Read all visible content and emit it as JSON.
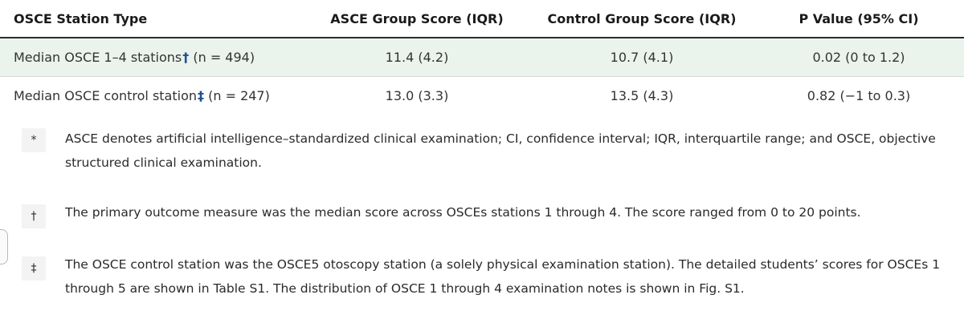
{
  "table": {
    "headers": [
      "OSCE Station Type",
      "ASCE Group Score (IQR)",
      "Control Group Score (IQR)",
      "P Value (95% CI)"
    ],
    "rows": [
      {
        "label": "Median OSCE 1–4 stations",
        "mark": "†",
        "n": "(n = 494)",
        "asce": "11.4 (4.2)",
        "control": "10.7 (4.1)",
        "p": "0.02 (0 to 1.2)"
      },
      {
        "label": "Median OSCE control station",
        "mark": "‡",
        "n": "(n = 247)",
        "asce": "13.0 (3.3)",
        "control": "13.5 (4.3)",
        "p": "0.82 (−1 to 0.3)"
      }
    ]
  },
  "footnotes": [
    {
      "mark": "*",
      "text": "ASCE denotes artificial intelligence–standardized clinical examination; CI, confidence interval; IQR, interquartile range; and OSCE, objective structured clinical examination."
    },
    {
      "mark": "†",
      "text": "The primary outcome measure was the median score across OSCEs stations 1 through 4. The score ranged from 0 to 20 points."
    },
    {
      "mark": "‡",
      "text": "The OSCE control station was the OSCE5 otoscopy station (a solely physical examination station). The detailed students’ scores for OSCEs 1 through 5 are shown in Table S1. The distribution of OSCE 1 through 4 examination notes is shown in Fig. S1."
    }
  ],
  "colors": {
    "row_highlight": "#eaf4ec",
    "dagger": "#1f4f8f",
    "rule": "#2c2c2c"
  }
}
